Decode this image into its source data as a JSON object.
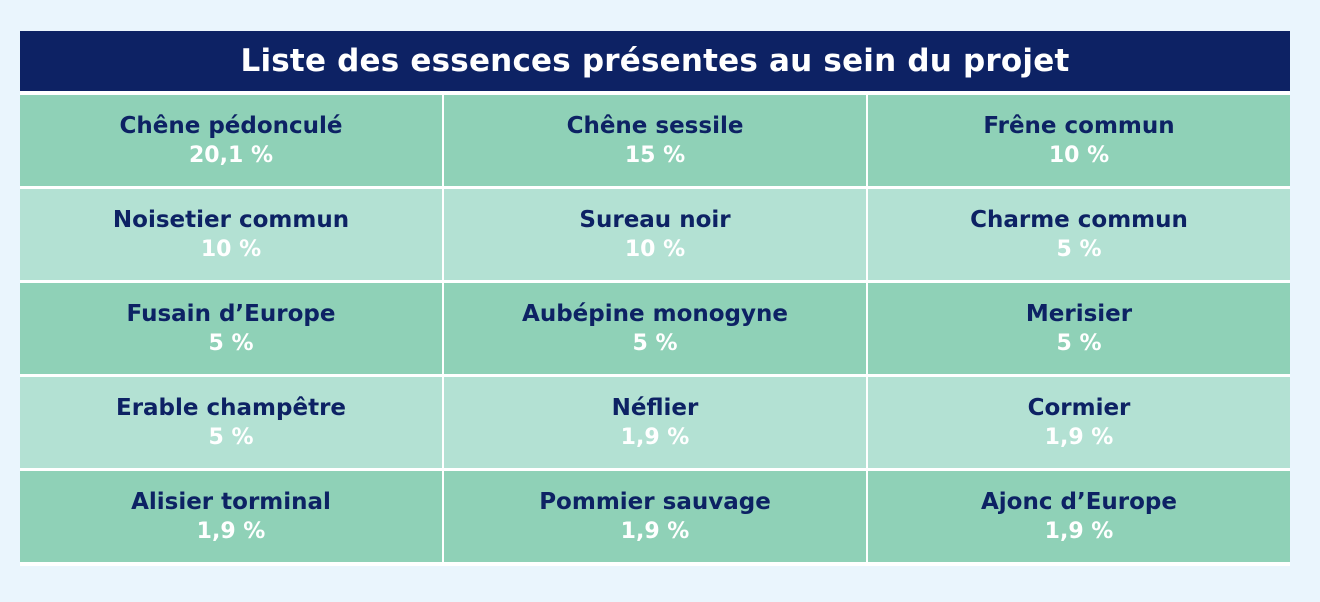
{
  "title": "Liste des essences présentes au sein du projet",
  "colors": {
    "header_bg": "#0d2264",
    "row_dark": "#8fd1b7",
    "row_light": "#b3e1d3",
    "name_text": "#0d2264",
    "percent_text": "#ffffff",
    "page_bg": "#eaf5fd"
  },
  "species": [
    {
      "name": "Chêne pédonculé",
      "percent": "20,1 %"
    },
    {
      "name": "Chêne sessile",
      "percent": "15 %"
    },
    {
      "name": "Frêne commun",
      "percent": "10 %"
    },
    {
      "name": "Noisetier commun",
      "percent": "10 %"
    },
    {
      "name": "Sureau noir",
      "percent": "10 %"
    },
    {
      "name": "Charme commun",
      "percent": "5 %"
    },
    {
      "name": "Fusain d’Europe",
      "percent": "5 %"
    },
    {
      "name": "Aubépine monogyne",
      "percent": "5 %"
    },
    {
      "name": "Merisier",
      "percent": "5 %"
    },
    {
      "name": "Erable champêtre",
      "percent": "5 %"
    },
    {
      "name": "Néflier",
      "percent": "1,9 %"
    },
    {
      "name": "Cormier",
      "percent": "1,9 %"
    },
    {
      "name": "Alisier torminal",
      "percent": "1,9 %"
    },
    {
      "name": "Pommier sauvage",
      "percent": "1,9 %"
    },
    {
      "name": "Ajonc d’Europe",
      "percent": "1,9 %"
    }
  ]
}
